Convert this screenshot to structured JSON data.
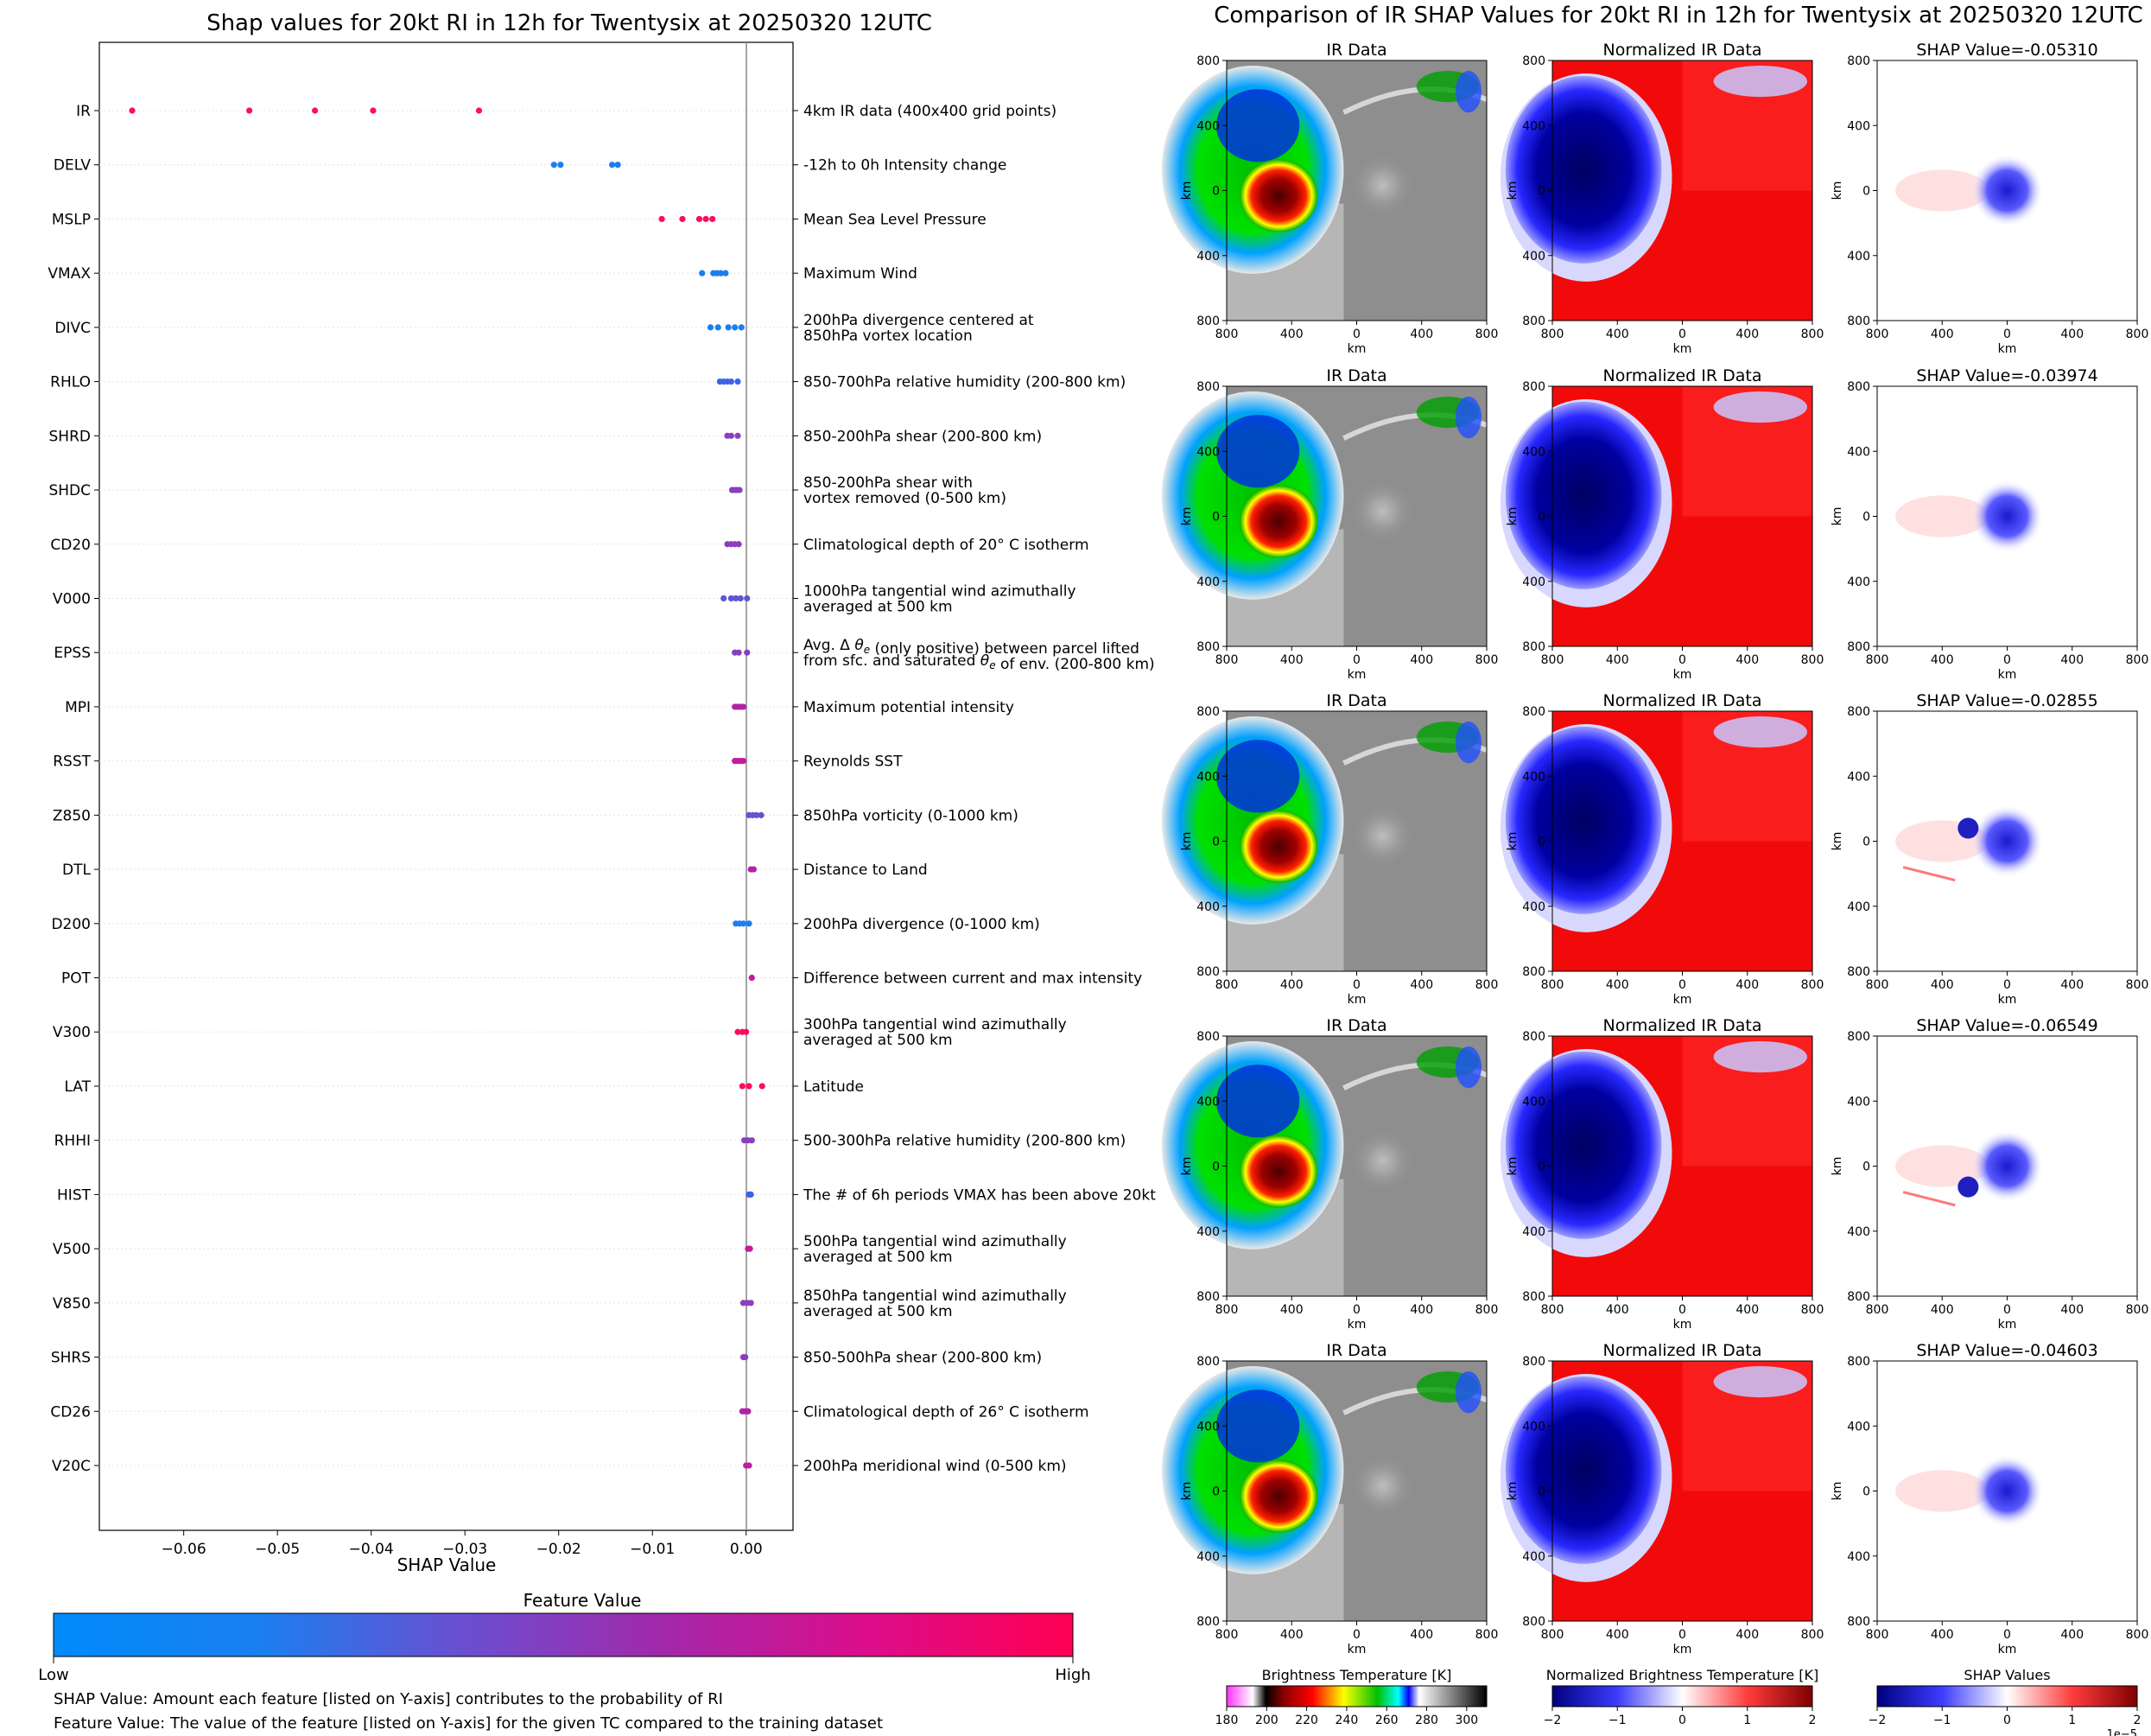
{
  "left_title": "Shap values for 20kt RI in 12h for Twentysix at 20250320 12UTC",
  "right_title": "Comparison of IR SHAP Values for 20kt RI in 12h for Twentysix at 20250320 12UTC",
  "chart_data": [
    {
      "type": "scatter",
      "title": "Shap values for 20kt RI in 12h for Twentysix at 20250320 12UTC",
      "xlabel": "SHAP Value",
      "ylabel": "",
      "xlim": [
        -0.069,
        0.005
      ],
      "xticks": [
        -0.06,
        -0.05,
        -0.04,
        -0.03,
        -0.02,
        -0.01,
        0.0
      ],
      "xtick_labels": [
        "−0.06",
        "−0.05",
        "−0.04",
        "−0.03",
        "−0.02",
        "−0.01",
        "0.00"
      ],
      "grid": false,
      "colorbar": {
        "title": "Feature Value",
        "low_label": "Low",
        "high_label": "High",
        "colors": [
          "#008bfb",
          "#3f64e8",
          "#8b3fbd",
          "#c419a0",
          "#ff0052"
        ]
      },
      "features": [
        {
          "name": "IR",
          "description": [
            "4km IR data (400x400 grid points)"
          ],
          "color": "#ff0d5a",
          "shap": [
            -0.0655,
            -0.053,
            -0.046,
            -0.0398,
            -0.0285
          ]
        },
        {
          "name": "DELV",
          "description": [
            "-12h to 0h Intensity change"
          ],
          "color": "#1a7ff0",
          "shap": [
            -0.0205,
            -0.0198,
            -0.0143,
            -0.0137
          ]
        },
        {
          "name": "MSLP",
          "description": [
            "Mean Sea Level Pressure"
          ],
          "color": "#ff0d5a",
          "shap": [
            -0.009,
            -0.0068,
            -0.005,
            -0.0043,
            -0.0036
          ]
        },
        {
          "name": "VMAX",
          "description": [
            "Maximum Wind"
          ],
          "color": "#1a7ff0",
          "shap": [
            -0.0047,
            -0.0035,
            -0.0031,
            -0.0027,
            -0.0022
          ]
        },
        {
          "name": "DIVC",
          "description": [
            "200hPa divergence centered at",
            "850hPa vortex location"
          ],
          "color": "#1a7ff0",
          "shap": [
            -0.0038,
            -0.003,
            -0.0019,
            -0.0012,
            -0.0005
          ]
        },
        {
          "name": "RHLO",
          "description": [
            "850-700hPa relative humidity (200-800 km)"
          ],
          "color": "#3e62e6",
          "shap": [
            -0.0028,
            -0.0024,
            -0.002,
            -0.0016,
            -0.0009
          ]
        },
        {
          "name": "SHRD",
          "description": [
            "850-200hPa shear (200-800 km)"
          ],
          "color": "#8a3fbe",
          "shap": [
            -0.002,
            -0.0016,
            -0.0009
          ]
        },
        {
          "name": "SHDC",
          "description": [
            "850-200hPa shear with",
            "vortex removed (0-500 km)"
          ],
          "color": "#8a3fbe",
          "shap": [
            -0.0015,
            -0.0012,
            -0.001,
            -0.0007
          ]
        },
        {
          "name": "CD20",
          "description": [
            "Climatological depth of 20° C isotherm"
          ],
          "color": "#8a3fbe",
          "shap": [
            -0.002,
            -0.0016,
            -0.0012,
            -0.0008
          ]
        },
        {
          "name": "V000",
          "description": [
            "1000hPa tangential wind azimuthally",
            "averaged at 500 km"
          ],
          "color": "#5d55d6",
          "shap": [
            -0.0024,
            -0.0016,
            -0.0011,
            -0.0006,
            0.0001
          ]
        },
        {
          "name": "EPSS",
          "description": [
            "Avg. Δ θe (only positive) between parcel lifted",
            "from sfc. and saturated θe of env. (200-800 km)"
          ],
          "color": "#8a3fbe",
          "shap": [
            -0.0012,
            -0.0008,
            0.0001
          ]
        },
        {
          "name": "MPI",
          "description": [
            "Maximum potential intensity"
          ],
          "color": "#b023a8",
          "shap": [
            -0.0012,
            -0.0009,
            -0.0006,
            -0.0003
          ]
        },
        {
          "name": "RSST",
          "description": [
            "Reynolds SST"
          ],
          "color": "#c41aa0",
          "shap": [
            -0.0012,
            -0.0009,
            -0.0006,
            -0.0003
          ]
        },
        {
          "name": "Z850",
          "description": [
            "850hPa vorticity (0-1000 km)"
          ],
          "color": "#6a4fd0",
          "shap": [
            0.0003,
            0.0007,
            0.0011,
            0.0016
          ]
        },
        {
          "name": "DTL",
          "description": [
            "Distance to Land"
          ],
          "color": "#b023a8",
          "shap": [
            0.0005,
            0.0008
          ]
        },
        {
          "name": "D200",
          "description": [
            "200hPa divergence (0-1000 km)"
          ],
          "color": "#1a7ff0",
          "shap": [
            -0.0011,
            -0.0007,
            -0.0003,
            0.0003
          ]
        },
        {
          "name": "POT",
          "description": [
            "Difference between current and max intensity"
          ],
          "color": "#c41aa0",
          "shap": [
            0.0006
          ]
        },
        {
          "name": "V300",
          "description": [
            "300hPa tangential wind azimuthally",
            "averaged at 500 km"
          ],
          "color": "#ff0d5a",
          "shap": [
            -0.0009,
            -0.0004,
            0.0
          ]
        },
        {
          "name": "LAT",
          "description": [
            "Latitude"
          ],
          "color": "#ff0d5a",
          "shap": [
            -0.0004,
            0.0003,
            0.0017
          ]
        },
        {
          "name": "RHHI",
          "description": [
            "500-300hPa relative humidity (200-800 km)"
          ],
          "color": "#8a3fbe",
          "shap": [
            -0.0002,
            0.0002,
            0.0006
          ]
        },
        {
          "name": "HIST",
          "description": [
            "The # of 6h periods VMAX has been above 20kt"
          ],
          "color": "#3e62e6",
          "shap": [
            0.0003,
            0.0005
          ]
        },
        {
          "name": "V500",
          "description": [
            "500hPa tangential wind azimuthally",
            "averaged at 500 km"
          ],
          "color": "#c41aa0",
          "shap": [
            0.0002,
            0.0004
          ]
        },
        {
          "name": "V850",
          "description": [
            "850hPa tangential wind azimuthally",
            "averaged at 500 km"
          ],
          "color": "#8a3fbe",
          "shap": [
            -0.0003,
            0.0001,
            0.0005
          ]
        },
        {
          "name": "SHRS",
          "description": [
            "850-500hPa shear (200-800 km)"
          ],
          "color": "#8a3fbe",
          "shap": [
            -0.0003,
            -0.0001
          ]
        },
        {
          "name": "CD26",
          "description": [
            "Climatological depth of 26° C isotherm"
          ],
          "color": "#b023a8",
          "shap": [
            -0.0004,
            -0.0001,
            0.0002
          ]
        },
        {
          "name": "V20C",
          "description": [
            "200hPa meridional wind (0-500 km)"
          ],
          "color": "#c41aa0",
          "shap": [
            0.0,
            0.0003
          ]
        }
      ]
    },
    {
      "type": "heatmap",
      "title": "Comparison of IR SHAP Values for 20kt RI in 12h for Twentysix at 20250320 12UTC",
      "column_titles": [
        "IR Data",
        "Normalized IR Data"
      ],
      "axis_label": "km",
      "tick_labels": [
        "800",
        "400",
        "0",
        "400",
        "800"
      ],
      "shap_values": [
        "SHAP Value=-0.05310",
        "SHAP Value=-0.03974",
        "SHAP Value=-0.02855",
        "SHAP Value=-0.06549",
        "SHAP Value=-0.04603"
      ],
      "colorbars": [
        {
          "title": "Brightness Temperature [K]",
          "ticks": [
            "180",
            "200",
            "220",
            "240",
            "260",
            "280",
            "300"
          ],
          "range": [
            180,
            310
          ]
        },
        {
          "title": "Normalized Brightness Temperature [K]",
          "ticks": [
            "−2",
            "−1",
            "0",
            "1",
            "2"
          ],
          "range": [
            -2,
            2
          ]
        },
        {
          "title": "SHAP Values",
          "ticks": [
            "−2",
            "−1",
            "0",
            "1",
            "2"
          ],
          "range": [
            -2,
            2
          ],
          "exponent": "1e−5"
        }
      ]
    }
  ],
  "notes": [
    "SHAP Value: Amount each feature [listed on Y-axis] contributes to the probability of RI",
    "Feature Value: The value of the feature [listed on Y-axis] for the given TC compared to the training dataset"
  ]
}
